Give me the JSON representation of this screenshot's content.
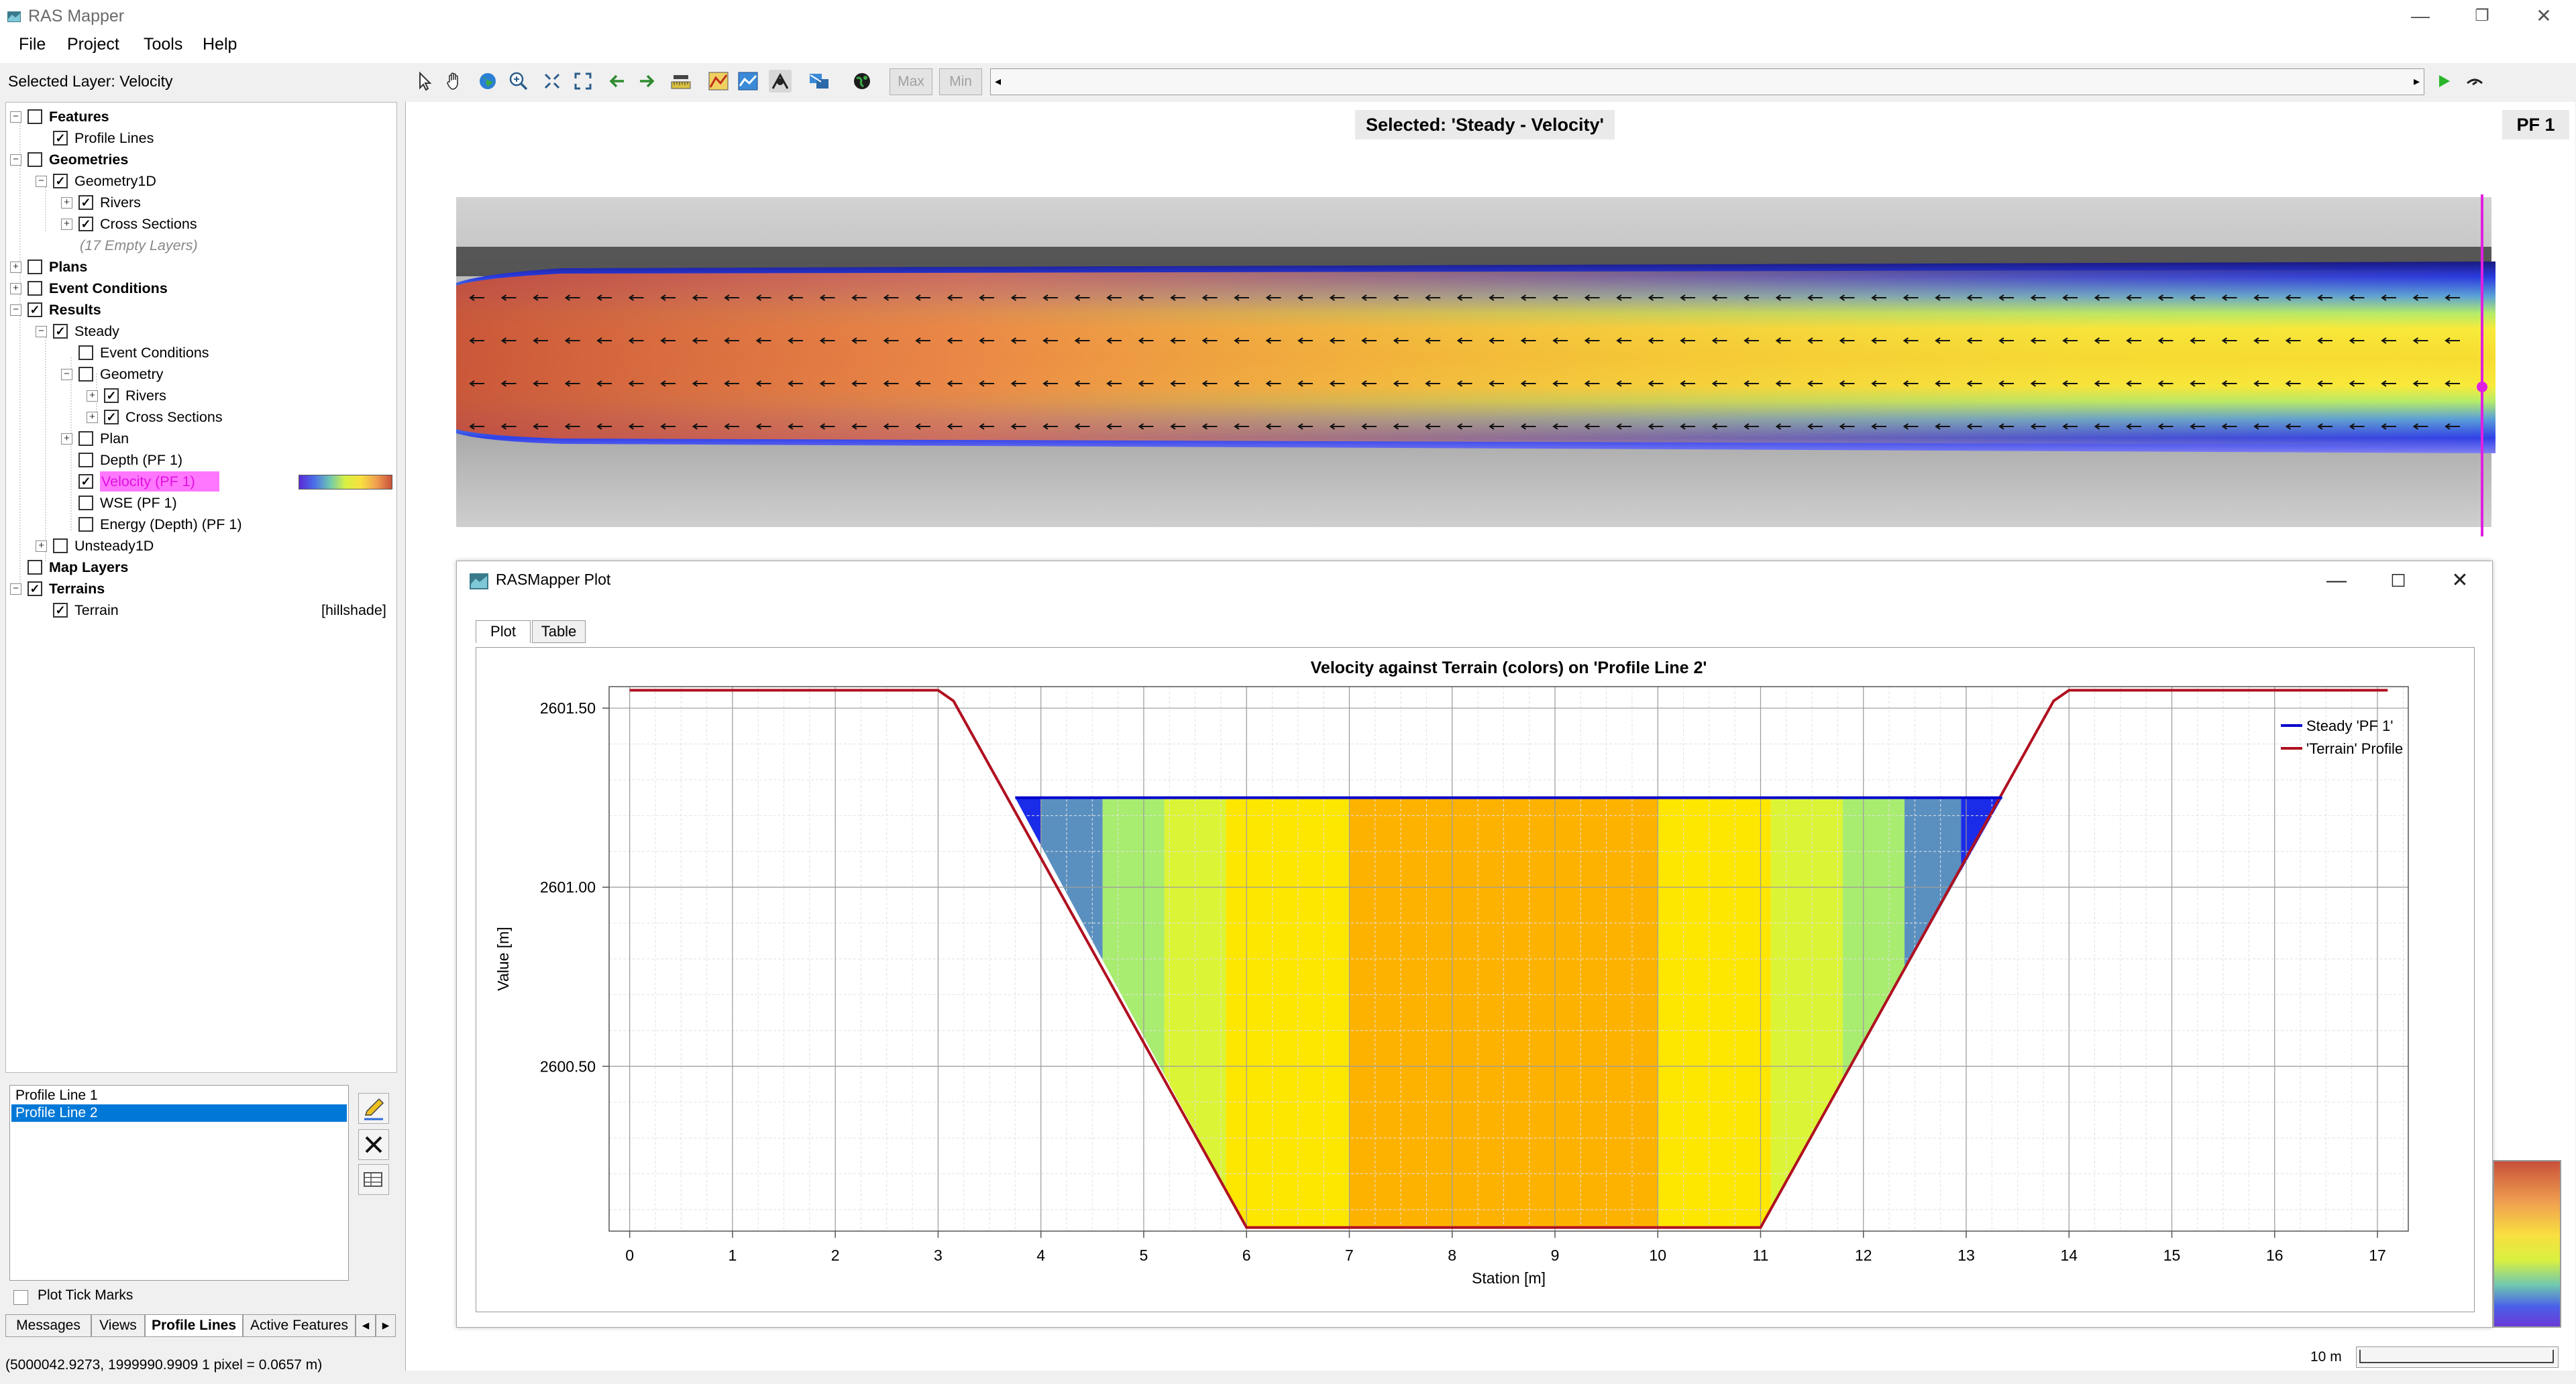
{
  "window": {
    "title": "RAS Mapper",
    "controls": [
      "—",
      "❐",
      "✕"
    ]
  },
  "menu": [
    "File",
    "Project",
    "Tools",
    "Help"
  ],
  "toolbar": {
    "selected_layer": "Selected Layer: Velocity",
    "max_label": "Max",
    "min_label": "Min"
  },
  "tree": [
    {
      "label": "Features",
      "level": 0,
      "exp": "minus",
      "checked": false,
      "bold": true
    },
    {
      "label": "Profile Lines",
      "level": 1,
      "exp": "",
      "checked": true
    },
    {
      "label": "Geometries",
      "level": 0,
      "exp": "minus",
      "checked": false,
      "bold": true
    },
    {
      "label": "Geometry1D",
      "level": 1,
      "exp": "minus",
      "checked": true
    },
    {
      "label": "Rivers",
      "level": 2,
      "exp": "plus",
      "checked": true
    },
    {
      "label": "Cross Sections",
      "level": 2,
      "exp": "plus",
      "checked": true
    },
    {
      "label": "(17 Empty Layers)",
      "level": 2,
      "exp": "",
      "checked": null,
      "italic": true
    },
    {
      "label": "Plans",
      "level": 0,
      "exp": "plus",
      "checked": false,
      "bold": true
    },
    {
      "label": "Event Conditions",
      "level": 0,
      "exp": "plus",
      "checked": false,
      "bold": true
    },
    {
      "label": "Results",
      "level": 0,
      "exp": "minus",
      "checked": true,
      "bold": true
    },
    {
      "label": "Steady",
      "level": 1,
      "exp": "minus",
      "checked": true
    },
    {
      "label": "Event Conditions",
      "level": 2,
      "exp": "",
      "checked": false
    },
    {
      "label": "Geometry",
      "level": 2,
      "exp": "minus",
      "checked": false
    },
    {
      "label": "Rivers",
      "level": 3,
      "exp": "plus",
      "checked": true
    },
    {
      "label": "Cross Sections",
      "level": 3,
      "exp": "plus",
      "checked": true
    },
    {
      "label": "Plan",
      "level": 2,
      "exp": "plus",
      "checked": false
    },
    {
      "label": "Depth (PF 1)",
      "level": 2,
      "exp": "",
      "checked": false
    },
    {
      "label": "Velocity (PF 1)",
      "level": 2,
      "exp": "",
      "checked": true,
      "highlight": true
    },
    {
      "label": "WSE (PF 1)",
      "level": 2,
      "exp": "",
      "checked": false
    },
    {
      "label": "Energy (Depth) (PF 1)",
      "level": 2,
      "exp": "",
      "checked": false
    },
    {
      "label": "Unsteady1D",
      "level": 1,
      "exp": "plus",
      "checked": false
    },
    {
      "label": "Map Layers",
      "level": 0,
      "exp": "",
      "checked": false,
      "bold": true
    },
    {
      "label": "Terrains",
      "level": 0,
      "exp": "minus",
      "checked": true,
      "bold": true
    },
    {
      "label": "Terrain",
      "level": 1,
      "exp": "",
      "checked": true,
      "suffix": "[hillshade]"
    }
  ],
  "profile_lines": {
    "items": [
      "Profile Line 1",
      "Profile Line 2"
    ],
    "selected_index": 1,
    "plot_tick_marks": "Plot Tick Marks"
  },
  "left_tabs": [
    "Messages",
    "Views",
    "Profile Lines",
    "Active Features"
  ],
  "left_tabs_active": 2,
  "status": "(5000042.9273, 1999990.9909  1 pixel = 0.0657 m)",
  "map": {
    "selected_caption": "Selected: 'Steady - Velocity'",
    "profile_caption": "PF 1"
  },
  "plot_window": {
    "title": "RASMapper Plot",
    "tabs": [
      "Plot",
      "Table"
    ],
    "active_tab": 0,
    "controls": [
      "—",
      "☐",
      "✕"
    ]
  },
  "scale": {
    "label": "10 m"
  },
  "colors": {
    "highlight_row": "#ff77ff",
    "selection_blue": "#0078d7",
    "wse_line": "#0000cc",
    "terrain_line": "#b01020"
  },
  "chart_data": {
    "type": "area",
    "title": "Velocity against Terrain (colors) on 'Profile Line 2'",
    "xlabel": "Station [m]",
    "ylabel": "Value [m]",
    "xlim": [
      -0.2,
      17.3
    ],
    "ylim": [
      2600.04,
      2601.56
    ],
    "xticks": [
      0,
      1,
      2,
      3,
      4,
      5,
      6,
      7,
      8,
      9,
      10,
      11,
      12,
      13,
      14,
      15,
      16,
      17
    ],
    "yticks": [
      {
        "value": 2601.5,
        "label": "2601.50"
      },
      {
        "value": 2601.0,
        "label": "2601.00"
      },
      {
        "value": 2600.5,
        "label": "2600.50"
      }
    ],
    "grid": true,
    "legend_position": "top-right",
    "series": [
      {
        "name": "Steady 'PF 1'",
        "color": "#0000cc",
        "x": [
          3.75,
          13.35
        ],
        "y": [
          2601.25,
          2601.25
        ]
      },
      {
        "name": "'Terrain' Profile",
        "color": "#b01020",
        "x": [
          0,
          3.0,
          3.15,
          6.0,
          11.0,
          13.85,
          14.0,
          17.1
        ],
        "y": [
          2601.55,
          2601.55,
          2601.52,
          2600.05,
          2600.05,
          2601.52,
          2601.55,
          2601.55
        ]
      }
    ],
    "velocity_bands": [
      {
        "x0": 3.75,
        "x1": 4.0,
        "color": "#1a2ce8"
      },
      {
        "x0": 4.0,
        "x1": 4.6,
        "color": "#5a90c0"
      },
      {
        "x0": 4.6,
        "x1": 5.2,
        "color": "#a8ec70"
      },
      {
        "x0": 5.2,
        "x1": 5.8,
        "color": "#dcf436"
      },
      {
        "x0": 5.8,
        "x1": 7.0,
        "color": "#fde600"
      },
      {
        "x0": 7.0,
        "x1": 10.0,
        "color": "#fdb200"
      },
      {
        "x0": 10.0,
        "x1": 11.1,
        "color": "#fde600"
      },
      {
        "x0": 11.1,
        "x1": 11.8,
        "color": "#dcf436"
      },
      {
        "x0": 11.8,
        "x1": 12.4,
        "color": "#a8ec70"
      },
      {
        "x0": 12.4,
        "x1": 12.95,
        "color": "#5a90c0"
      },
      {
        "x0": 12.95,
        "x1": 13.35,
        "color": "#1a2ce8"
      }
    ]
  }
}
